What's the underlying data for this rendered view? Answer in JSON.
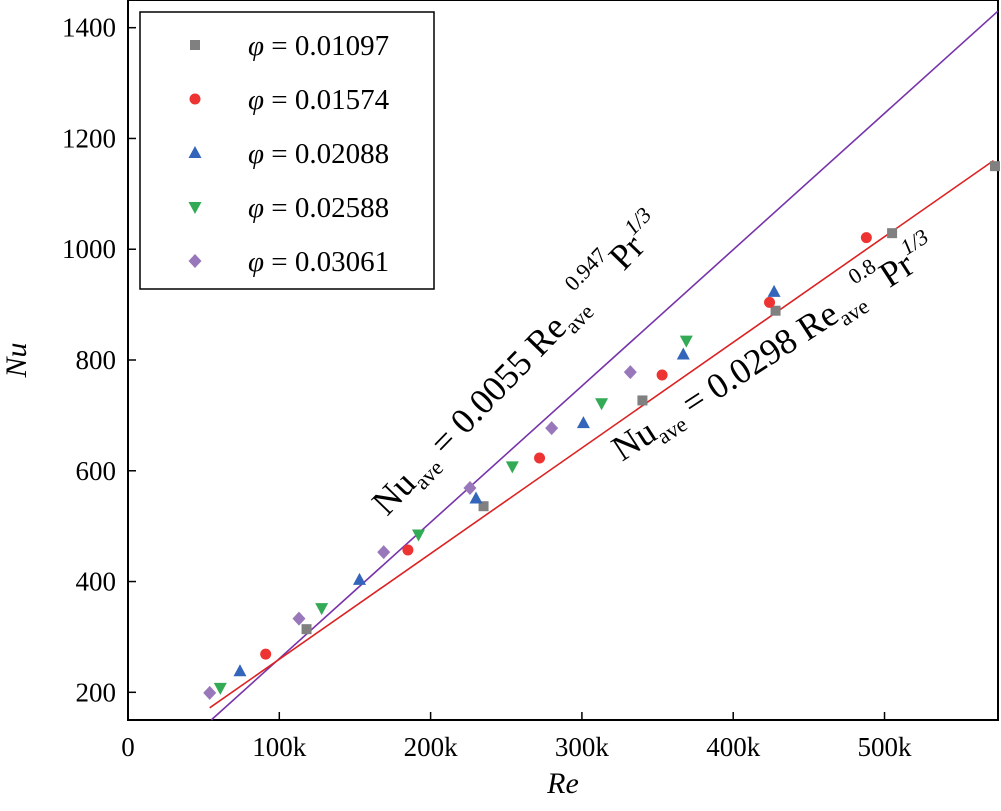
{
  "chart_data": {
    "type": "scatter",
    "title": "",
    "xlabel": "Re",
    "ylabel": "Nu",
    "xlim": [
      0,
      575000
    ],
    "ylim": [
      150,
      1450
    ],
    "x_ticks": [
      0,
      100000,
      200000,
      300000,
      400000,
      500000
    ],
    "x_tick_labels": [
      "0",
      "100k",
      "200k",
      "300k",
      "400k",
      "500k"
    ],
    "y_ticks": [
      200,
      400,
      600,
      800,
      1000,
      1200,
      1400
    ],
    "y_tick_labels": [
      "200",
      "400",
      "600",
      "800",
      "1000",
      "1200",
      "1400"
    ],
    "legend_position": "top-left",
    "series": [
      {
        "name": "φ = 0.01097",
        "legend_symbol": "φ",
        "legend_value": "= 0.01097",
        "marker": "square",
        "color": "#808080",
        "points": [
          [
            118000,
            314
          ],
          [
            235000,
            536
          ],
          [
            340000,
            727
          ],
          [
            428000,
            889
          ],
          [
            505000,
            1029
          ],
          [
            573000,
            1150
          ]
        ]
      },
      {
        "name": "φ = 0.01574",
        "legend_symbol": "φ",
        "legend_value": "= 0.01574",
        "marker": "circle",
        "color": "#ee3333",
        "points": [
          [
            91000,
            269
          ],
          [
            185000,
            457
          ],
          [
            272000,
            623
          ],
          [
            353000,
            773
          ],
          [
            424000,
            904
          ],
          [
            488000,
            1021
          ]
        ]
      },
      {
        "name": "φ = 0.02088",
        "legend_symbol": "φ",
        "legend_value": "= 0.02088",
        "marker": "triangle-up",
        "color": "#3366bb",
        "points": [
          [
            74000,
            238
          ],
          [
            153000,
            403
          ],
          [
            230000,
            550
          ],
          [
            301000,
            686
          ],
          [
            367000,
            810
          ],
          [
            427000,
            923
          ]
        ]
      },
      {
        "name": "φ = 0.02588",
        "legend_symbol": "φ",
        "legend_value": "= 0.02588",
        "marker": "triangle-down",
        "color": "#33aa55",
        "points": [
          [
            61000,
            208
          ],
          [
            128000,
            352
          ],
          [
            192000,
            485
          ],
          [
            254000,
            608
          ],
          [
            313000,
            722
          ],
          [
            369000,
            835
          ]
        ]
      },
      {
        "name": "φ = 0.03061",
        "legend_symbol": "φ",
        "legend_value": "= 0.03061",
        "marker": "diamond",
        "color": "#9977bb",
        "points": [
          [
            54000,
            199
          ],
          [
            113000,
            333
          ],
          [
            169000,
            453
          ],
          [
            226000,
            569
          ],
          [
            280000,
            677
          ],
          [
            332000,
            778
          ]
        ]
      }
    ],
    "fits": [
      {
        "name": "purple-fit",
        "color": "#7733aa",
        "x_range": [
          55000,
          575000
        ],
        "y_range": [
          150,
          1430
        ]
      },
      {
        "name": "red-fit",
        "color": "#dd2222",
        "x_range": [
          54000,
          572000
        ],
        "y_range": [
          172,
          1160
        ]
      }
    ],
    "annotations": {
      "purple": {
        "nu": "Nu",
        "nu_sub": "ave",
        "eq": " = 0.0055 Re",
        "re_sub": "ave",
        "exp": "0.947",
        "pr": "Pr",
        "pr_exp": "1/3"
      },
      "red": {
        "nu": "Nu",
        "nu_sub": "ave",
        "eq": " = 0.0298 Re",
        "re_sub": "ave",
        "exp": "0.8",
        "pr": "Pr",
        "pr_exp": "1/3"
      }
    }
  }
}
